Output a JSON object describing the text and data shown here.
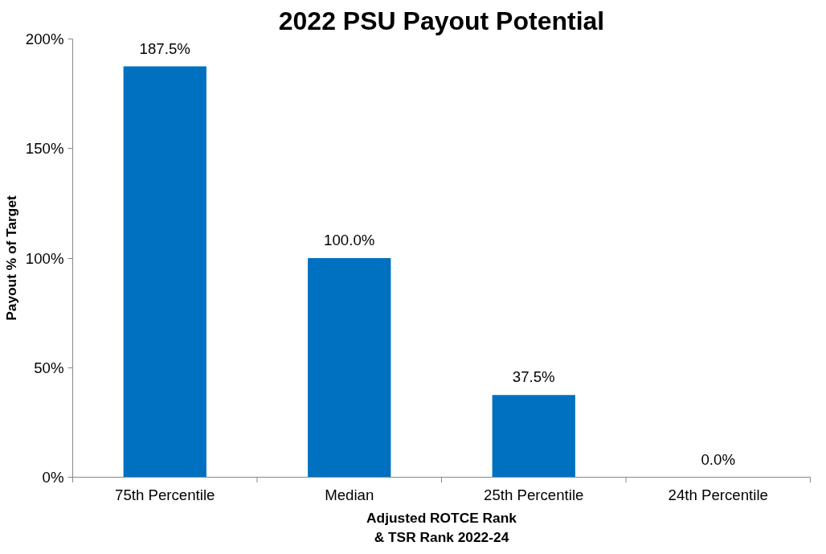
{
  "chart_data": {
    "type": "bar",
    "title": "2022 PSU Payout Potential",
    "xlabel": "Adjusted ROTCE Rank\n& TSR Rank 2022-24",
    "ylabel": "Payout % of Target",
    "categories": [
      "75th Percentile",
      "Median",
      "25th Percentile",
      "24th Percentile"
    ],
    "series": [
      {
        "color": "#0070c0",
        "values": [
          187.5,
          100.0,
          37.5,
          0.0
        ]
      }
    ],
    "value_labels": [
      "187.5%",
      "100.0%",
      "37.5%",
      "0.0%"
    ],
    "ylim": [
      0,
      200
    ],
    "yticks": [
      {
        "value": 0,
        "label": "0%"
      },
      {
        "value": 50,
        "label": "50%"
      },
      {
        "value": 100,
        "label": "100%"
      },
      {
        "value": 150,
        "label": "150%"
      },
      {
        "value": 200,
        "label": "200%"
      }
    ],
    "grid": false
  }
}
